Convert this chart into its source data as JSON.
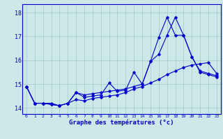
{
  "xlabel": "Graphe des températures (°c)",
  "background_color": "#cce8e8",
  "grid_color": "#aacccc",
  "line_color": "#0000cc",
  "xlim_min": -0.5,
  "xlim_max": 23.5,
  "ylim_min": 13.75,
  "ylim_max": 18.35,
  "yticks": [
    14,
    15,
    16,
    17,
    18
  ],
  "xticks": [
    0,
    1,
    2,
    3,
    4,
    5,
    6,
    7,
    8,
    9,
    10,
    11,
    12,
    13,
    14,
    15,
    16,
    17,
    18,
    19,
    20,
    21,
    22,
    23
  ],
  "series1_x": [
    0,
    1,
    2,
    3,
    4,
    5,
    6,
    7,
    8,
    9,
    10,
    11,
    12,
    13,
    14,
    15,
    16,
    17,
    18,
    19,
    20,
    21,
    22,
    23
  ],
  "series1_y": [
    14.9,
    14.2,
    14.2,
    14.2,
    14.1,
    14.2,
    14.35,
    14.3,
    14.4,
    14.45,
    14.5,
    14.55,
    14.65,
    14.8,
    14.9,
    15.05,
    15.2,
    15.4,
    15.55,
    15.7,
    15.8,
    15.85,
    15.9,
    15.45
  ],
  "series2_x": [
    0,
    1,
    2,
    3,
    4,
    5,
    6,
    7,
    8,
    9,
    10,
    11,
    12,
    13,
    14,
    15,
    16,
    17,
    18,
    19,
    20,
    21,
    22,
    23
  ],
  "series2_y": [
    14.9,
    14.2,
    14.2,
    14.15,
    14.1,
    14.2,
    14.65,
    14.45,
    14.5,
    14.55,
    15.05,
    14.7,
    14.75,
    15.5,
    15.0,
    15.95,
    16.25,
    17.05,
    17.8,
    17.05,
    16.15,
    15.55,
    15.45,
    15.35
  ],
  "series3_x": [
    0,
    1,
    2,
    3,
    4,
    5,
    6,
    7,
    8,
    9,
    10,
    11,
    12,
    13,
    14,
    15,
    16,
    17,
    18,
    19,
    20,
    21,
    22,
    23
  ],
  "series3_y": [
    14.9,
    14.2,
    14.2,
    14.15,
    14.1,
    14.2,
    14.65,
    14.55,
    14.6,
    14.65,
    14.7,
    14.75,
    14.8,
    14.9,
    15.0,
    15.95,
    16.95,
    17.8,
    17.05,
    17.05,
    16.15,
    15.5,
    15.4,
    15.3
  ]
}
